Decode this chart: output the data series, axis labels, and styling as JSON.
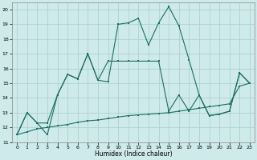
{
  "xlabel": "Humidex (Indice chaleur)",
  "xlim": [
    -0.5,
    23.5
  ],
  "ylim": [
    11,
    20.5
  ],
  "yticks": [
    11,
    12,
    13,
    14,
    15,
    16,
    17,
    18,
    19,
    20
  ],
  "xticks": [
    0,
    1,
    2,
    3,
    4,
    5,
    6,
    7,
    8,
    9,
    10,
    11,
    12,
    13,
    14,
    15,
    16,
    17,
    18,
    19,
    20,
    21,
    22,
    23
  ],
  "bg_color": "#ceeaea",
  "grid_color": "#a8cccc",
  "line_color": "#1a6e62",
  "line1_y": [
    11.5,
    13.0,
    12.3,
    11.5,
    14.2,
    15.6,
    15.3,
    17.0,
    15.2,
    15.1,
    19.0,
    19.1,
    19.4,
    17.6,
    19.1,
    20.2,
    18.9,
    16.6,
    14.2,
    12.8,
    12.9,
    13.1,
    15.7,
    15.0
  ],
  "line2_y": [
    11.5,
    13.0,
    12.3,
    12.3,
    14.2,
    15.6,
    15.3,
    17.0,
    15.2,
    16.5,
    16.5,
    16.5,
    16.5,
    16.5,
    16.5,
    13.1,
    14.2,
    13.1,
    14.2,
    12.8,
    12.9,
    13.1,
    15.7,
    15.0
  ],
  "line3_y": [
    11.5,
    11.7,
    11.9,
    12.0,
    12.1,
    12.2,
    12.35,
    12.45,
    12.5,
    12.6,
    12.7,
    12.8,
    12.85,
    12.9,
    12.95,
    13.0,
    13.1,
    13.2,
    13.3,
    13.4,
    13.5,
    13.6,
    14.8,
    15.0
  ]
}
